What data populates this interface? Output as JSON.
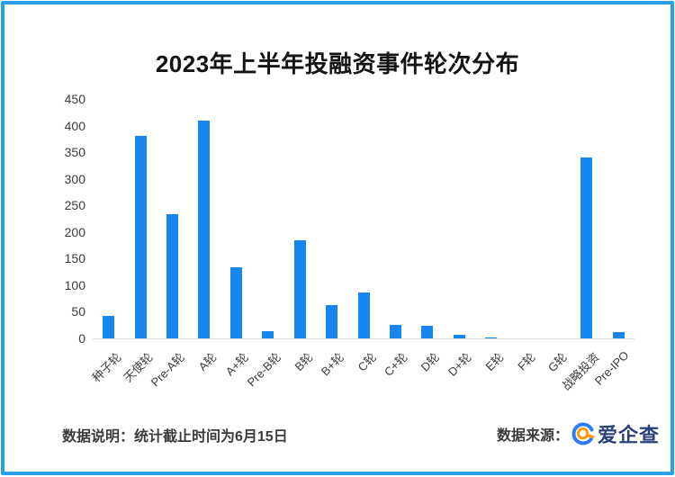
{
  "title": "2023年上半年投融资事件轮次分布",
  "chart_data": {
    "type": "bar",
    "title": "2023年上半年投融资事件轮次分布",
    "categories": [
      "种子轮",
      "天使轮",
      "Pre-A轮",
      "A轮",
      "A+轮",
      "Pre-B轮",
      "B轮",
      "B+轮",
      "C轮",
      "C+轮",
      "D轮",
      "D+轮",
      "E轮",
      "F轮",
      "G轮",
      "战略投资",
      "Pre-IPO"
    ],
    "values": [
      43,
      381,
      234,
      409,
      134,
      14,
      185,
      62,
      86,
      26,
      24,
      6,
      2,
      0,
      0,
      340,
      12
    ],
    "xlabel": "",
    "ylabel": "",
    "ylim": [
      0,
      450
    ],
    "yticks": [
      450,
      400,
      350,
      300,
      250,
      200,
      150,
      100,
      50,
      0
    ],
    "grid": false,
    "legend": false,
    "bar_color": "#1787f0",
    "axis_line_color": "#dcdcdc"
  },
  "frame": {
    "border_color": "#2aa0e9"
  },
  "footer": {
    "note": "数据说明：统计截止时间为6月15日",
    "source_label": "数据来源：",
    "source_name": "爱企查",
    "brand_text_color": "#2a4179",
    "logo_blue": "#2d7df6",
    "logo_orange": "#ff9c00"
  }
}
